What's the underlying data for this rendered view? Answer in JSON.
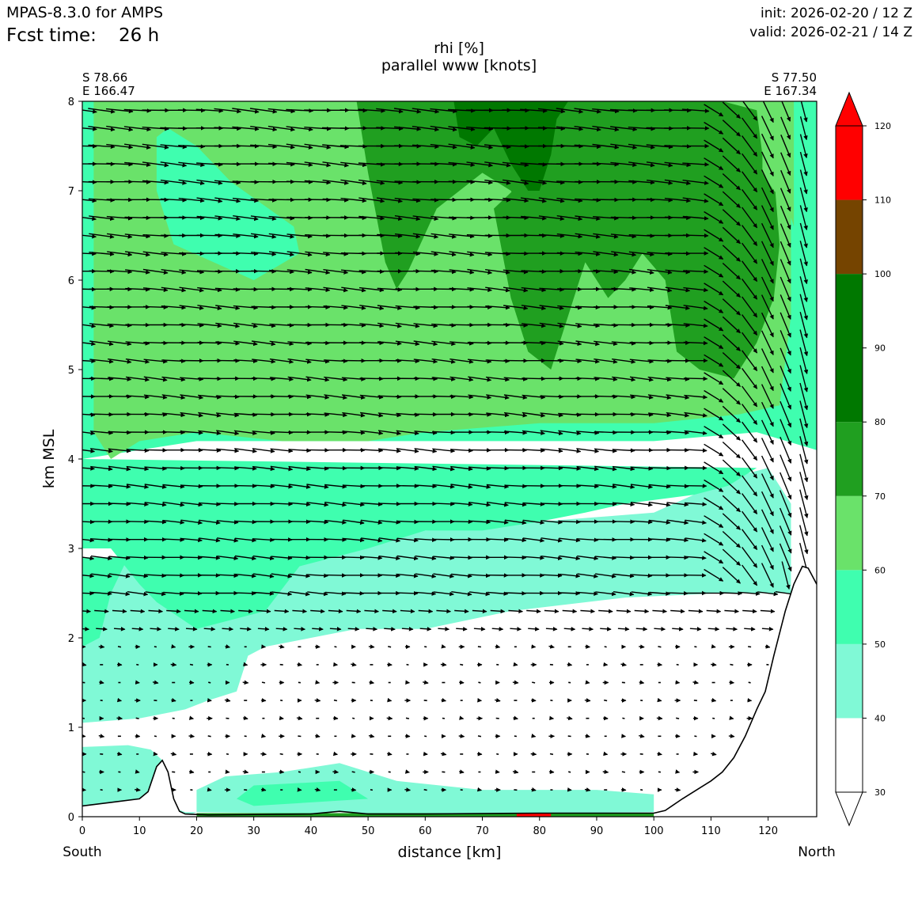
{
  "header": {
    "model": "MPAS-8.3.0 for AMPS",
    "fcst_label": "Fcst time:",
    "fcst_value": "26 h",
    "init": "init: 2026-02-20 / 12 Z",
    "valid": "valid: 2026-02-21 / 14 Z"
  },
  "chart_data": {
    "type": "heatmap",
    "title": "rhi [%]",
    "subtitle": "parallel www [knots]",
    "xlabel": "distance [km]",
    "ylabel": "km MSL",
    "x_end_labels": {
      "left": "South",
      "right": "North"
    },
    "start_point": {
      "lat": "S 78.66",
      "lon": "E 166.47"
    },
    "end_point": {
      "lat": "S 77.50",
      "lon": "E 167.34"
    },
    "xlim": [
      0,
      128.5
    ],
    "ylim": [
      0,
      8
    ],
    "x_ticks": [
      0,
      10,
      20,
      30,
      40,
      50,
      60,
      70,
      80,
      90,
      100,
      110,
      120
    ],
    "y_ticks": [
      0,
      1,
      2,
      3,
      4,
      5,
      6,
      7,
      8
    ],
    "colorbar": {
      "ticks": [
        30,
        40,
        50,
        60,
        70,
        80,
        90,
        100,
        110,
        120
      ],
      "bands": [
        {
          "from": 30,
          "to": 40,
          "color": "#ffffff"
        },
        {
          "from": 40,
          "to": 50,
          "color": "#80f9d6"
        },
        {
          "from": 50,
          "to": 60,
          "color": "#3ffeaf"
        },
        {
          "from": 60,
          "to": 70,
          "color": "#6ae26a"
        },
        {
          "from": 70,
          "to": 80,
          "color": "#209f20"
        },
        {
          "from": 80,
          "to": 100,
          "color": "#007800"
        },
        {
          "from": 100,
          "to": 110,
          "color": "#754400"
        },
        {
          "from": 110,
          "to": 120,
          "color": "#ff0000"
        }
      ],
      "extend": "both"
    },
    "terrain": [
      [
        0,
        0.12
      ],
      [
        5,
        0.16
      ],
      [
        10,
        0.2
      ],
      [
        11.5,
        0.28
      ],
      [
        13,
        0.56
      ],
      [
        14,
        0.63
      ],
      [
        15,
        0.5
      ],
      [
        16,
        0.2
      ],
      [
        17,
        0.06
      ],
      [
        18,
        0.03
      ],
      [
        22,
        0.02
      ],
      [
        40,
        0.03
      ],
      [
        45,
        0.06
      ],
      [
        50,
        0.03
      ],
      [
        60,
        0.03
      ],
      [
        80,
        0.04
      ],
      [
        100,
        0.04
      ],
      [
        102,
        0.07
      ],
      [
        105,
        0.2
      ],
      [
        108,
        0.32
      ],
      [
        110,
        0.4
      ],
      [
        112,
        0.5
      ],
      [
        114,
        0.66
      ],
      [
        116,
        0.9
      ],
      [
        118,
        1.2
      ],
      [
        119.5,
        1.4
      ],
      [
        121,
        1.8
      ],
      [
        123,
        2.3
      ],
      [
        124.5,
        2.6
      ],
      [
        126,
        2.8
      ],
      [
        127,
        2.78
      ],
      [
        128.5,
        2.6
      ]
    ],
    "rh_regions": [
      {
        "level": 40,
        "points": [
          [
            0,
            2.6
          ],
          [
            5,
            2.8
          ],
          [
            13,
            3.0
          ],
          [
            30,
            3.0
          ],
          [
            60,
            3.2
          ],
          [
            100,
            3.4
          ],
          [
            114,
            3.8
          ],
          [
            120,
            3.9
          ],
          [
            124,
            3.5
          ],
          [
            124,
            2.5
          ],
          [
            112,
            2.5
          ],
          [
            95,
            2.45
          ],
          [
            75,
            2.3
          ],
          [
            60,
            2.1
          ],
          [
            48,
            2.1
          ],
          [
            40,
            2.0
          ],
          [
            32,
            1.9
          ],
          [
            29,
            1.8
          ],
          [
            27,
            1.4
          ],
          [
            22,
            1.3
          ],
          [
            18,
            1.2
          ],
          [
            10,
            1.1
          ],
          [
            0,
            1.05
          ]
        ]
      },
      {
        "level": 50,
        "points": [
          [
            0,
            1.9
          ],
          [
            3,
            2.0
          ],
          [
            5,
            2.5
          ],
          [
            8,
            2.9
          ],
          [
            0,
            2.9
          ]
        ]
      },
      {
        "level": 50,
        "points": [
          [
            10,
            2.6
          ],
          [
            13,
            2.4
          ],
          [
            20,
            2.1
          ],
          [
            32,
            2.3
          ],
          [
            38,
            2.8
          ],
          [
            50,
            3.0
          ],
          [
            60,
            3.2
          ],
          [
            70,
            3.2
          ],
          [
            80,
            3.3
          ],
          [
            88,
            3.4
          ],
          [
            95,
            3.5
          ],
          [
            107,
            3.6
          ],
          [
            113,
            3.7
          ],
          [
            118,
            3.9
          ],
          [
            0,
            4.0
          ],
          [
            0,
            3.0
          ],
          [
            5,
            3.0
          ]
        ]
      },
      {
        "level": 50,
        "points": [
          [
            0,
            4.0
          ],
          [
            0,
            8.0
          ],
          [
            128.5,
            8.0
          ],
          [
            128.5,
            4.1
          ],
          [
            118,
            4.3
          ],
          [
            100,
            4.2
          ],
          [
            70,
            4.2
          ],
          [
            40,
            4.2
          ],
          [
            20,
            4.2
          ]
        ]
      },
      {
        "level": 40,
        "points": [
          [
            0,
            0.78
          ],
          [
            8,
            0.8
          ],
          [
            12,
            0.75
          ],
          [
            14,
            0.63
          ],
          [
            16,
            0.1
          ],
          [
            18,
            0.05
          ],
          [
            20,
            0.05
          ],
          [
            18,
            0.0
          ],
          [
            0,
            0.0
          ]
        ]
      },
      {
        "level": 40,
        "points": [
          [
            20,
            0.05
          ],
          [
            20,
            0.3
          ],
          [
            25,
            0.45
          ],
          [
            35,
            0.5
          ],
          [
            45,
            0.6
          ],
          [
            55,
            0.4
          ],
          [
            70,
            0.3
          ],
          [
            90,
            0.3
          ],
          [
            100,
            0.25
          ],
          [
            100,
            0.05
          ],
          [
            60,
            0.02
          ]
        ]
      },
      {
        "level": 50,
        "points": [
          [
            27,
            0.2
          ],
          [
            30,
            0.35
          ],
          [
            45,
            0.4
          ],
          [
            50,
            0.2
          ],
          [
            30,
            0.12
          ]
        ]
      },
      {
        "level": 60,
        "points": [
          [
            2,
            4.3
          ],
          [
            5,
            4.0
          ],
          [
            10,
            4.2
          ],
          [
            20,
            4.3
          ],
          [
            35,
            4.2
          ],
          [
            50,
            4.2
          ],
          [
            60,
            4.3
          ],
          [
            80,
            4.4
          ],
          [
            100,
            4.4
          ],
          [
            115,
            4.5
          ],
          [
            122,
            4.6
          ],
          [
            124,
            5.6
          ],
          [
            124,
            7.2
          ],
          [
            122,
            7.9
          ],
          [
            120,
            8.0
          ],
          [
            0,
            8.0
          ],
          [
            0,
            6.6
          ],
          [
            2,
            6.4
          ]
        ]
      },
      {
        "level": 50,
        "points": [
          [
            13,
            7.6
          ],
          [
            15,
            7.7
          ],
          [
            20,
            7.5
          ],
          [
            26,
            7.1
          ],
          [
            37,
            6.6
          ],
          [
            38,
            6.3
          ],
          [
            30,
            6.0
          ],
          [
            16,
            6.4
          ],
          [
            13,
            7.0
          ]
        ]
      },
      {
        "level": 50,
        "points": [
          [
            0,
            6.6
          ],
          [
            0,
            8.0
          ],
          [
            2,
            8.0
          ],
          [
            2,
            6.4
          ]
        ]
      },
      {
        "level": 70,
        "points": [
          [
            48,
            8.0
          ],
          [
            50,
            7.2
          ],
          [
            53,
            6.2
          ],
          [
            55,
            5.9
          ],
          [
            57,
            6.1
          ],
          [
            62,
            6.8
          ],
          [
            70,
            7.2
          ],
          [
            75,
            7.0
          ],
          [
            78,
            6.6
          ],
          [
            80,
            7.0
          ],
          [
            83,
            6.8
          ],
          [
            88,
            6.5
          ],
          [
            92,
            6.8
          ],
          [
            96,
            7.6
          ],
          [
            100,
            7.9
          ],
          [
            102,
            8.0
          ]
        ]
      },
      {
        "level": 70,
        "points": [
          [
            72,
            6.8
          ],
          [
            75,
            5.8
          ],
          [
            78,
            5.2
          ],
          [
            82,
            5.0
          ],
          [
            85,
            5.6
          ],
          [
            88,
            6.2
          ],
          [
            92,
            5.8
          ],
          [
            95,
            6.0
          ],
          [
            98,
            6.3
          ],
          [
            102,
            6.0
          ],
          [
            104,
            5.2
          ],
          [
            108,
            5.0
          ],
          [
            114,
            4.9
          ],
          [
            118,
            5.3
          ],
          [
            121,
            5.8
          ],
          [
            122,
            6.4
          ],
          [
            121,
            7.2
          ],
          [
            119,
            7.4
          ],
          [
            118,
            7.9
          ],
          [
            112,
            8.0
          ],
          [
            86,
            8.0
          ],
          [
            82,
            7.4
          ]
        ]
      },
      {
        "level": 80,
        "points": [
          [
            65,
            8.0
          ],
          [
            66,
            7.6
          ],
          [
            69,
            7.5
          ],
          [
            72,
            7.7
          ],
          [
            75,
            7.3
          ],
          [
            78,
            7.0
          ],
          [
            80,
            7.0
          ],
          [
            82,
            7.4
          ],
          [
            83,
            7.8
          ],
          [
            85,
            8.0
          ]
        ]
      },
      {
        "level": 60,
        "points": [
          [
            119,
            7.2
          ],
          [
            121,
            7.0
          ],
          [
            123,
            6.9
          ],
          [
            124.5,
            6.6
          ],
          [
            124.5,
            8.0
          ],
          [
            119,
            8.0
          ]
        ]
      }
    ]
  }
}
